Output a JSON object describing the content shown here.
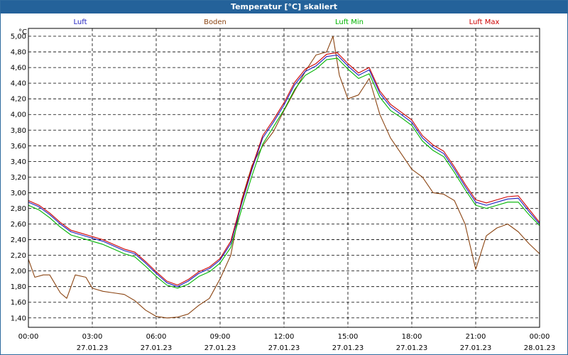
{
  "window": {
    "title": "Temperatur [°C] skaliert"
  },
  "chart_data": {
    "type": "line",
    "title": "Temperatur [°C] skaliert",
    "ylabel": "°C",
    "xlabel": "",
    "ylim": [
      1.28,
      5.1
    ],
    "xlim": [
      0,
      24
    ],
    "grid": true,
    "legend_position": "top",
    "y_ticks": [
      "5,00",
      "4,80",
      "4,60",
      "4,40",
      "4,20",
      "4,00",
      "3,80",
      "3,60",
      "3,40",
      "3,20",
      "3,00",
      "2,80",
      "2,60",
      "2,40",
      "2,20",
      "2,00",
      "1,80",
      "1,60",
      "1,40"
    ],
    "x_ticks": [
      {
        "time": "00:00",
        "date": ""
      },
      {
        "time": "03:00",
        "date": "27.01.23"
      },
      {
        "time": "06:00",
        "date": "27.01.23"
      },
      {
        "time": "09:00",
        "date": "27.01.23"
      },
      {
        "time": "12:00",
        "date": "27.01.23"
      },
      {
        "time": "15:00",
        "date": "27.01.23"
      },
      {
        "time": "18:00",
        "date": "27.01.23"
      },
      {
        "time": "21:00",
        "date": "27.01.23"
      },
      {
        "time": "00:00",
        "date": "28.01.23"
      }
    ],
    "series": [
      {
        "name": "Luft",
        "color": "#1f1fbf",
        "points": [
          [
            0,
            2.88
          ],
          [
            0.5,
            2.82
          ],
          [
            1,
            2.72
          ],
          [
            1.5,
            2.6
          ],
          [
            2,
            2.5
          ],
          [
            2.5,
            2.46
          ],
          [
            3,
            2.42
          ],
          [
            3.5,
            2.38
          ],
          [
            4,
            2.32
          ],
          [
            4.5,
            2.26
          ],
          [
            5,
            2.22
          ],
          [
            5.5,
            2.1
          ],
          [
            6,
            1.97
          ],
          [
            6.5,
            1.85
          ],
          [
            7,
            1.8
          ],
          [
            7.5,
            1.87
          ],
          [
            8,
            1.97
          ],
          [
            8.5,
            2.03
          ],
          [
            9,
            2.14
          ],
          [
            9.5,
            2.35
          ],
          [
            10,
            2.85
          ],
          [
            10.5,
            3.3
          ],
          [
            11,
            3.7
          ],
          [
            11.5,
            3.9
          ],
          [
            12,
            4.12
          ],
          [
            12.5,
            4.38
          ],
          [
            13,
            4.55
          ],
          [
            13.5,
            4.62
          ],
          [
            14,
            4.74
          ],
          [
            14.5,
            4.76
          ],
          [
            15,
            4.62
          ],
          [
            15.5,
            4.5
          ],
          [
            16,
            4.57
          ],
          [
            16.5,
            4.27
          ],
          [
            17,
            4.1
          ],
          [
            17.5,
            4.0
          ],
          [
            18,
            3.9
          ],
          [
            18.5,
            3.7
          ],
          [
            19,
            3.58
          ],
          [
            19.5,
            3.5
          ],
          [
            20,
            3.3
          ],
          [
            20.5,
            3.08
          ],
          [
            21,
            2.88
          ],
          [
            21.5,
            2.84
          ],
          [
            22,
            2.88
          ],
          [
            22.5,
            2.92
          ],
          [
            23,
            2.93
          ],
          [
            23.5,
            2.76
          ],
          [
            24,
            2.6
          ]
        ]
      },
      {
        "name": "Boden",
        "color": "#8b4513",
        "points": [
          [
            0,
            2.15
          ],
          [
            0.3,
            1.92
          ],
          [
            0.7,
            1.95
          ],
          [
            1,
            1.95
          ],
          [
            1.5,
            1.72
          ],
          [
            1.8,
            1.65
          ],
          [
            2.2,
            1.95
          ],
          [
            2.7,
            1.92
          ],
          [
            3,
            1.78
          ],
          [
            3.5,
            1.74
          ],
          [
            4,
            1.72
          ],
          [
            4.5,
            1.7
          ],
          [
            5,
            1.62
          ],
          [
            5.5,
            1.5
          ],
          [
            6,
            1.42
          ],
          [
            6.5,
            1.4
          ],
          [
            7,
            1.41
          ],
          [
            7.5,
            1.45
          ],
          [
            8,
            1.56
          ],
          [
            8.5,
            1.65
          ],
          [
            9,
            1.9
          ],
          [
            9.5,
            2.2
          ],
          [
            10,
            2.9
          ],
          [
            10.5,
            3.35
          ],
          [
            11,
            3.6
          ],
          [
            11.5,
            3.78
          ],
          [
            12,
            4.05
          ],
          [
            12.5,
            4.3
          ],
          [
            13,
            4.55
          ],
          [
            13.5,
            4.76
          ],
          [
            14,
            4.8
          ],
          [
            14.3,
            5.0
          ],
          [
            14.6,
            4.5
          ],
          [
            15,
            4.2
          ],
          [
            15.5,
            4.25
          ],
          [
            16,
            4.46
          ],
          [
            16.5,
            4.0
          ],
          [
            17,
            3.7
          ],
          [
            17.5,
            3.5
          ],
          [
            18,
            3.3
          ],
          [
            18.5,
            3.2
          ],
          [
            19,
            3.0
          ],
          [
            19.5,
            2.98
          ],
          [
            20,
            2.9
          ],
          [
            20.5,
            2.6
          ],
          [
            21,
            2.02
          ],
          [
            21.5,
            2.45
          ],
          [
            22,
            2.55
          ],
          [
            22.5,
            2.6
          ],
          [
            23,
            2.5
          ],
          [
            23.5,
            2.35
          ],
          [
            24,
            2.22
          ]
        ]
      },
      {
        "name": "Luft Min",
        "color": "#00b400",
        "points": [
          [
            0,
            2.84
          ],
          [
            0.5,
            2.78
          ],
          [
            1,
            2.68
          ],
          [
            1.5,
            2.56
          ],
          [
            2,
            2.46
          ],
          [
            2.5,
            2.42
          ],
          [
            3,
            2.38
          ],
          [
            3.5,
            2.34
          ],
          [
            4,
            2.28
          ],
          [
            4.5,
            2.22
          ],
          [
            5,
            2.18
          ],
          [
            5.5,
            2.06
          ],
          [
            6,
            1.93
          ],
          [
            6.5,
            1.82
          ],
          [
            7,
            1.78
          ],
          [
            7.5,
            1.83
          ],
          [
            8,
            1.93
          ],
          [
            8.5,
            1.99
          ],
          [
            9,
            2.1
          ],
          [
            9.5,
            2.3
          ],
          [
            10,
            2.78
          ],
          [
            10.5,
            3.22
          ],
          [
            11,
            3.62
          ],
          [
            11.5,
            3.84
          ],
          [
            12,
            4.06
          ],
          [
            12.5,
            4.32
          ],
          [
            13,
            4.5
          ],
          [
            13.5,
            4.58
          ],
          [
            14,
            4.7
          ],
          [
            14.5,
            4.72
          ],
          [
            15,
            4.58
          ],
          [
            15.5,
            4.46
          ],
          [
            16,
            4.52
          ],
          [
            16.5,
            4.22
          ],
          [
            17,
            4.05
          ],
          [
            17.5,
            3.96
          ],
          [
            18,
            3.86
          ],
          [
            18.5,
            3.66
          ],
          [
            19,
            3.54
          ],
          [
            19.5,
            3.46
          ],
          [
            20,
            3.26
          ],
          [
            20.5,
            3.04
          ],
          [
            21,
            2.84
          ],
          [
            21.5,
            2.8
          ],
          [
            22,
            2.84
          ],
          [
            22.5,
            2.88
          ],
          [
            23,
            2.88
          ],
          [
            23.5,
            2.72
          ],
          [
            24,
            2.58
          ]
        ]
      },
      {
        "name": "Luft Max",
        "color": "#cc0000",
        "points": [
          [
            0,
            2.9
          ],
          [
            0.5,
            2.84
          ],
          [
            1,
            2.74
          ],
          [
            1.5,
            2.62
          ],
          [
            2,
            2.52
          ],
          [
            2.5,
            2.48
          ],
          [
            3,
            2.44
          ],
          [
            3.5,
            2.4
          ],
          [
            4,
            2.34
          ],
          [
            4.5,
            2.28
          ],
          [
            5,
            2.24
          ],
          [
            5.5,
            2.12
          ],
          [
            6,
            1.99
          ],
          [
            6.5,
            1.87
          ],
          [
            7,
            1.82
          ],
          [
            7.5,
            1.89
          ],
          [
            8,
            1.99
          ],
          [
            8.5,
            2.05
          ],
          [
            9,
            2.16
          ],
          [
            9.5,
            2.38
          ],
          [
            10,
            2.88
          ],
          [
            10.5,
            3.33
          ],
          [
            11,
            3.73
          ],
          [
            11.5,
            3.93
          ],
          [
            12,
            4.15
          ],
          [
            12.5,
            4.41
          ],
          [
            13,
            4.58
          ],
          [
            13.5,
            4.65
          ],
          [
            14,
            4.77
          ],
          [
            14.5,
            4.79
          ],
          [
            15,
            4.65
          ],
          [
            15.5,
            4.53
          ],
          [
            16,
            4.6
          ],
          [
            16.5,
            4.3
          ],
          [
            17,
            4.13
          ],
          [
            17.5,
            4.03
          ],
          [
            18,
            3.93
          ],
          [
            18.5,
            3.73
          ],
          [
            19,
            3.61
          ],
          [
            19.5,
            3.53
          ],
          [
            20,
            3.33
          ],
          [
            20.5,
            3.11
          ],
          [
            21,
            2.91
          ],
          [
            21.5,
            2.87
          ],
          [
            22,
            2.91
          ],
          [
            22.5,
            2.95
          ],
          [
            23,
            2.96
          ],
          [
            23.5,
            2.79
          ],
          [
            24,
            2.62
          ]
        ]
      }
    ]
  }
}
